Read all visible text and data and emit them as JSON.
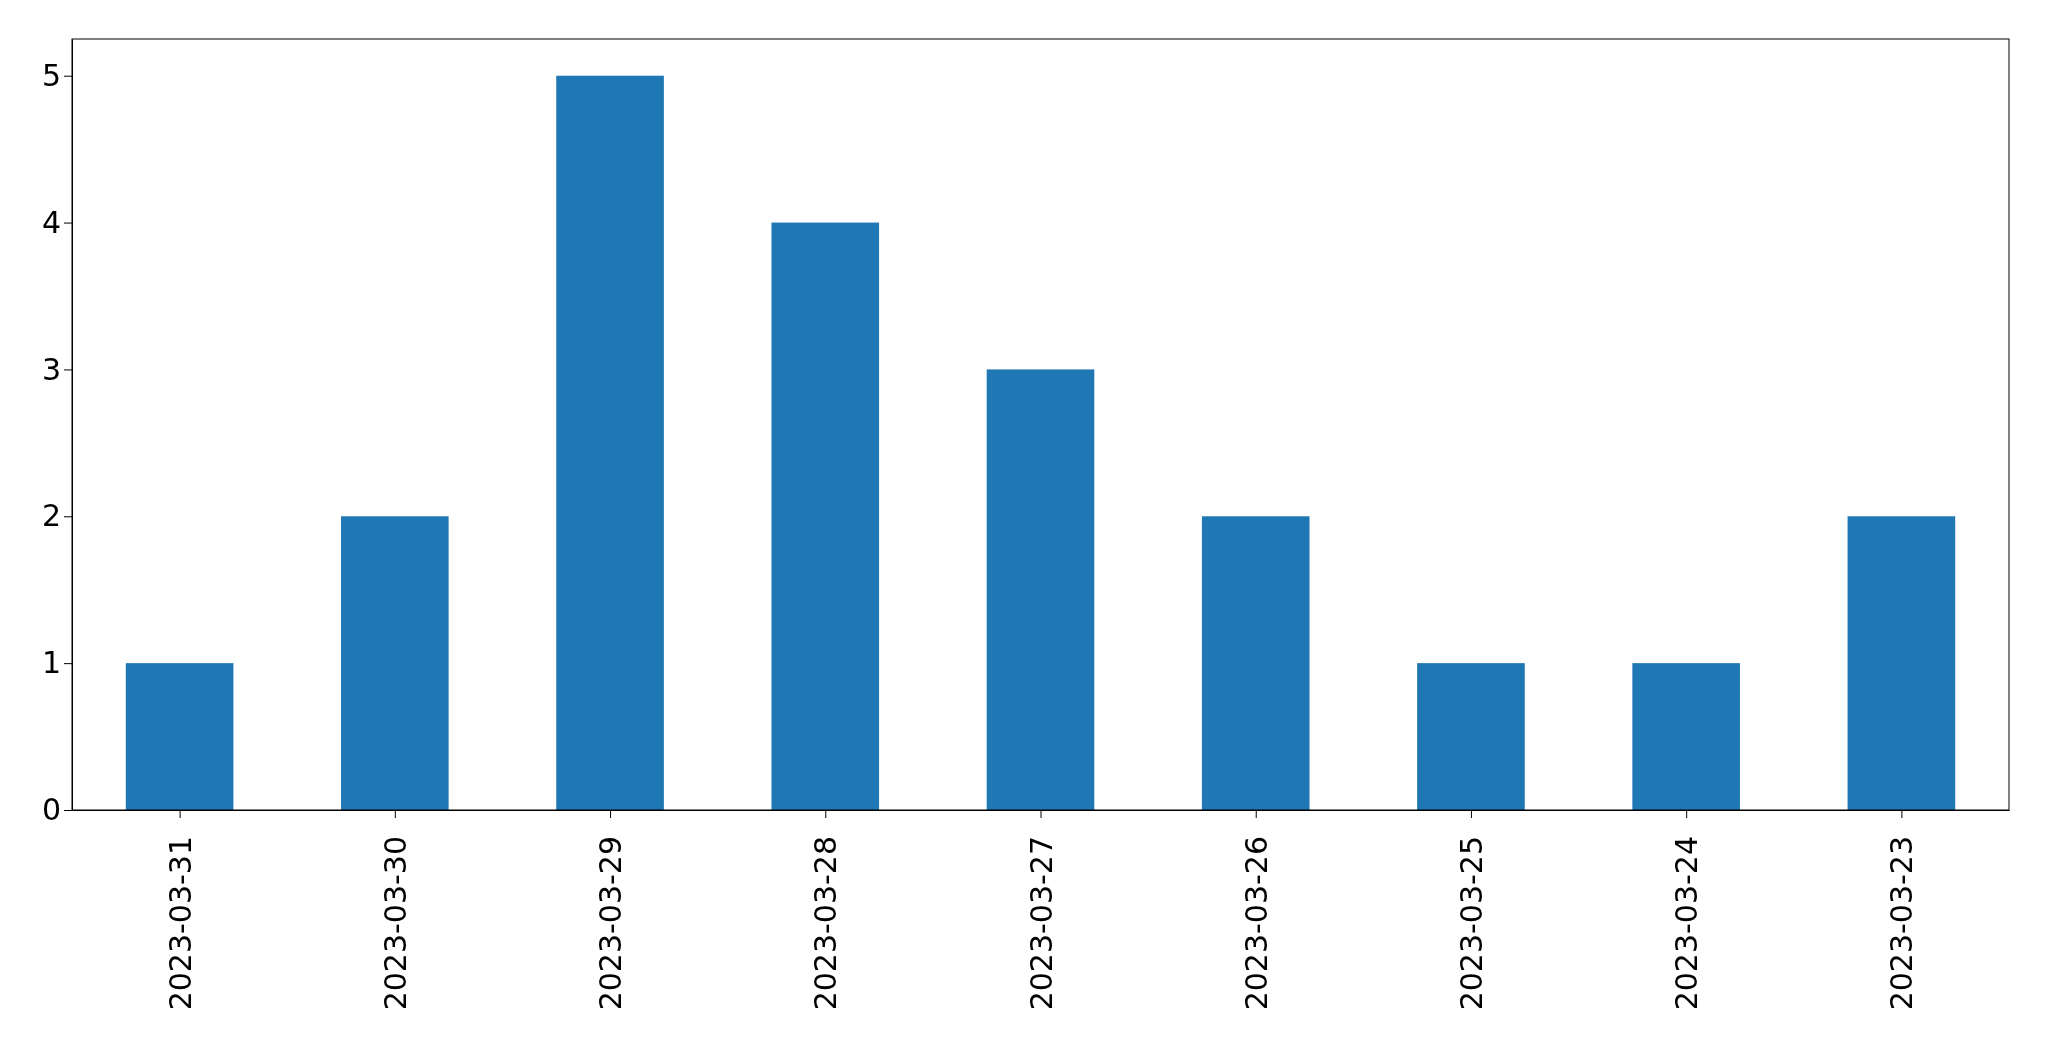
{
  "chart_data": {
    "type": "bar",
    "categories": [
      "2023-03-31",
      "2023-03-30",
      "2023-03-29",
      "2023-03-28",
      "2023-03-27",
      "2023-03-26",
      "2023-03-25",
      "2023-03-24",
      "2023-03-23"
    ],
    "values": [
      1,
      2,
      5,
      4,
      3,
      2,
      1,
      1,
      2
    ],
    "color": "#1f77b4",
    "ylim": [
      0,
      5.25
    ],
    "yticks": [
      0,
      1,
      2,
      3,
      4,
      5
    ],
    "grid": false
  }
}
